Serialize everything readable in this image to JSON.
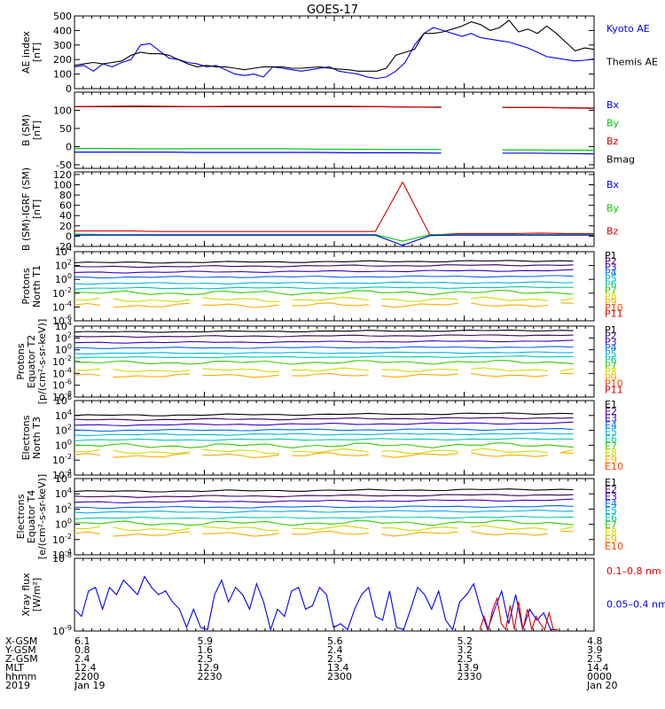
{
  "title": "GOES-17",
  "colors": {
    "frame": "#000000",
    "grid": "#dddddd",
    "blue": "#0000ff",
    "black": "#000000",
    "green": "#00cc00",
    "red": "#dd0000",
    "p1": "#000000",
    "p2": "#3a0066",
    "p3": "#3a00cc",
    "p4": "#0066ff",
    "p5": "#00b3e6",
    "p6": "#00ccaa",
    "p7": "#33cc00",
    "p8": "#ccdd00",
    "p9": "#ffaa00",
    "p10": "#ff4400",
    "p11": "#dd0000"
  },
  "x_axis": {
    "labels_left": [
      "X-GSM",
      "Y-GSM",
      "Z-GSM",
      "MLT",
      "hhmm",
      "2019"
    ],
    "ticks": [
      {
        "pos": 0.0,
        "lines": [
          "6.1",
          "0.8",
          "2.4",
          "12.4",
          "2200",
          "Jan 19"
        ]
      },
      {
        "pos": 0.25,
        "lines": [
          "5.9",
          "1.6",
          "2.5",
          "12.9",
          "2230",
          ""
        ]
      },
      {
        "pos": 0.5,
        "lines": [
          "5.6",
          "2.4",
          "2.5",
          "13.4",
          "2300",
          ""
        ]
      },
      {
        "pos": 0.75,
        "lines": [
          "5.2",
          "3.2",
          "2.5",
          "13.9",
          "2330",
          ""
        ]
      },
      {
        "pos": 1.0,
        "lines": [
          "4.8",
          "3.9",
          "2.5",
          "14.4",
          "0000",
          "Jan 20"
        ]
      }
    ]
  },
  "chart_data": [
    {
      "type": "line",
      "name": "ae",
      "ylabel": [
        "AE index",
        "[nT]"
      ],
      "ylim": [
        0,
        500
      ],
      "yticks": [
        "500",
        "400",
        "300",
        "200",
        "100",
        "0"
      ],
      "legend": [
        {
          "text": "Kyoto AE",
          "color": "#0000ff"
        },
        {
          "text": "Themis AE",
          "color": "#000000"
        }
      ],
      "series": [
        {
          "name": "Kyoto AE",
          "color": "#0000ff",
          "y": [
            150,
            160,
            120,
            170,
            150,
            180,
            200,
            300,
            310,
            260,
            210,
            200,
            180,
            170,
            150,
            160,
            130,
            100,
            90,
            100,
            80,
            150,
            140,
            130,
            120,
            130,
            140,
            150,
            120,
            110,
            100,
            80,
            70,
            80,
            120,
            180,
            300,
            380,
            420,
            400,
            380,
            360,
            380,
            350,
            340,
            330,
            320,
            300,
            280,
            250,
            220,
            210,
            200,
            190,
            195,
            205
          ]
        },
        {
          "name": "Themis AE",
          "color": "#000000",
          "y": [
            160,
            170,
            180,
            170,
            180,
            190,
            230,
            250,
            240,
            240,
            230,
            200,
            170,
            150,
            160,
            150,
            150,
            140,
            130,
            140,
            150,
            150,
            150,
            140,
            140,
            145,
            150,
            140,
            135,
            130,
            120,
            120,
            120,
            140,
            230,
            250,
            270,
            380,
            380,
            390,
            410,
            430,
            460,
            440,
            400,
            420,
            470,
            390,
            410,
            380,
            430,
            380,
            320,
            260,
            280,
            270
          ]
        }
      ]
    },
    {
      "type": "line",
      "name": "bsm",
      "ylabel": [
        "B (SM)",
        "[nT]"
      ],
      "ylim": [
        -60,
        150
      ],
      "yticks": [
        "100",
        "50",
        "0",
        "-50"
      ],
      "legend": [
        {
          "text": "Bx",
          "color": "#0000ff"
        },
        {
          "text": "By",
          "color": "#00cc00"
        },
        {
          "text": "Bz",
          "color": "#dd0000"
        },
        {
          "text": "Bmag",
          "color": "#000000"
        }
      ],
      "gap": [
        0.76,
        0.78
      ],
      "series": [
        {
          "name": "Bmag",
          "color": "#000000",
          "y": [
            110,
            110,
            110,
            110,
            110,
            110,
            110,
            110,
            110,
            110,
            110,
            109,
            109,
            109,
            108,
            108,
            107,
            106
          ]
        },
        {
          "name": "Bz",
          "color": "#dd0000",
          "y": [
            110,
            111,
            112,
            111,
            110,
            111,
            111,
            111,
            111,
            111,
            110,
            109,
            108,
            108,
            108,
            108,
            107,
            105
          ]
        },
        {
          "name": "By",
          "color": "#00cc00",
          "y": [
            -5,
            -5,
            -6,
            -6,
            -6,
            -6,
            -6,
            -6,
            -7,
            -7,
            -8,
            -8,
            -8,
            -8,
            -9,
            -9,
            -10,
            -10
          ]
        },
        {
          "name": "Bx",
          "color": "#0000ff",
          "y": [
            -15,
            -15,
            -15,
            -15,
            -16,
            -16,
            -16,
            -16,
            -16,
            -17,
            -17,
            -17,
            -18,
            -18,
            -18,
            -18,
            -19,
            -20
          ]
        }
      ]
    },
    {
      "type": "line",
      "name": "bdiff",
      "ylabel": [
        "B (SM)-IGRF (SM)",
        "[nT]"
      ],
      "ylim": [
        -20,
        125
      ],
      "yticks": [
        "120",
        "100",
        "80",
        "60",
        "40",
        "20",
        "0",
        "-20"
      ],
      "legend": [
        {
          "text": "Bx",
          "color": "#0000ff"
        },
        {
          "text": "By",
          "color": "#00cc00"
        },
        {
          "text": "Bz",
          "color": "#dd0000"
        }
      ],
      "series": [
        {
          "name": "Bz",
          "color": "#dd0000",
          "y": [
            10,
            10,
            10,
            9,
            9,
            9,
            9,
            9,
            9,
            9,
            9,
            9,
            105,
            2,
            5,
            5,
            5,
            6,
            5,
            5
          ]
        },
        {
          "name": "By",
          "color": "#00cc00",
          "y": [
            4,
            3,
            3,
            3,
            3,
            3,
            3,
            3,
            3,
            3,
            3,
            3,
            -10,
            3,
            3,
            3,
            3,
            3,
            3,
            3
          ]
        },
        {
          "name": "Bx",
          "color": "#0000ff",
          "y": [
            2,
            2,
            2,
            2,
            2,
            2,
            2,
            2,
            2,
            2,
            2,
            2,
            -18,
            1,
            2,
            2,
            2,
            2,
            2,
            2
          ]
        }
      ]
    },
    {
      "type": "line",
      "name": "protons_t1",
      "ylabel": [
        "Protons",
        "North T1"
      ],
      "ylim_log": [
        -6,
        4
      ],
      "yticks": [
        "10^4",
        "10^2",
        "10^0",
        "10^-2",
        "10^-4",
        "10^-6"
      ],
      "legend": [
        "P1",
        "P2",
        "P3",
        "P4",
        "P5",
        "P6",
        "P7",
        "P8",
        "P9",
        "P10",
        "P11"
      ],
      "levels": [
        2.4,
        1.8,
        1.0,
        0.3,
        -0.6,
        -1.3,
        -2.0,
        -3.0,
        -3.8,
        -5.0,
        -5.5
      ],
      "visible_levels": 9
    },
    {
      "type": "line",
      "name": "protons_t2",
      "ylabel": [
        "Protons",
        "Equator T2",
        "[p/(cm²-s-sr-keV)]"
      ],
      "ylim_log": [
        -8,
        4
      ],
      "yticks": [
        "10^4",
        "10^2",
        "10^0",
        "10^-2",
        "10^-4",
        "10^-6",
        "10^-8"
      ],
      "legend": [
        "P1",
        "P2",
        "P3",
        "P4",
        "P5",
        "P6",
        "P7",
        "P8",
        "P9",
        "P10",
        "P11"
      ],
      "levels": [
        3.0,
        2.2,
        1.2,
        0.3,
        -0.6,
        -1.3,
        -2.2,
        -3.5,
        -4.4,
        -6.4,
        -7.5
      ],
      "visible_levels": 9
    },
    {
      "type": "line",
      "name": "electrons_t3",
      "ylabel": [
        "Electrons",
        "North T3"
      ],
      "ylim_log": [
        -4,
        6
      ],
      "yticks": [
        "10^6",
        "10^4",
        "10^2",
        "10^0",
        "10^-2",
        "10^-4"
      ],
      "legend": [
        "E1",
        "E2",
        "E3",
        "E4",
        "E5",
        "E6",
        "E7",
        "E8",
        "E9",
        "E10"
      ],
      "levels": [
        4.0,
        3.4,
        2.7,
        2.0,
        1.4,
        0.7,
        -0.1,
        -0.9,
        -1.4,
        -2.5
      ],
      "visible_levels": 9
    },
    {
      "type": "line",
      "name": "electrons_t4",
      "ylabel": [
        "Electrons",
        "Equator T4",
        "[e/(cm²-s-sr-keV)]"
      ],
      "ylim_log": [
        -4,
        6
      ],
      "yticks": [
        "10^6",
        "10^4",
        "10^2",
        "10^0",
        "10^-2",
        "10^-4"
      ],
      "legend": [
        "E1",
        "E2",
        "E3",
        "E4",
        "E5",
        "E6",
        "E7",
        "E8",
        "E9",
        "E10"
      ],
      "levels": [
        4.3,
        3.6,
        2.9,
        2.2,
        1.6,
        0.8,
        0.1,
        -0.6,
        -1.3,
        -2.3
      ],
      "visible_levels": 9
    },
    {
      "type": "line",
      "name": "xray",
      "ylabel": [
        "Xray flux",
        "[W/m²]"
      ],
      "ylim_log": [
        -9,
        -8
      ],
      "yticks": [
        "10^-8",
        "10^-9"
      ],
      "legend": [
        {
          "text": "0.1–0.8 nm",
          "color": "#dd0000"
        },
        {
          "text": "0.05–0.4 nm",
          "color": "#0000ff"
        }
      ],
      "series": [
        {
          "name": "0.05–0.4 nm",
          "color": "#0000ff",
          "y": [
            0.3,
            0.2,
            0.55,
            0.6,
            0.3,
            0.6,
            0.5,
            0.7,
            0.6,
            0.5,
            0.75,
            0.6,
            0.5,
            0.55,
            0.4,
            0.3,
            0.05,
            0.3,
            0.05,
            0.02,
            0.5,
            0.7,
            0.4,
            0.6,
            0.5,
            0.3,
            0.65,
            0.4,
            0.02,
            0.3,
            0.2,
            0.55,
            0.6,
            0.3,
            0.35,
            0.6,
            0.5,
            0.05,
            0.1,
            0.02,
            0.3,
            0.5,
            0.6,
            0.2,
            0.15,
            0.55,
            0.05,
            0.02,
            0.3,
            0.6,
            0.5,
            0.3,
            0.55,
            0.15,
            0.02,
            0.4,
            0.5,
            0.65,
            0.3,
            0.02,
            0.3,
            0.55,
            0.1,
            0.5,
            0.02,
            0.3,
            0.15,
            0.25,
            0.02,
            0.02
          ]
        },
        {
          "name": "0.1–0.8 nm",
          "color": "#dd0000",
          "start": 0.78,
          "y": [
            0.02,
            0.2,
            0.02,
            0.3,
            0.45,
            0.1,
            0.02,
            0.35,
            0.02,
            0.4,
            0.02,
            0.3,
            0.02,
            0.2,
            0.1,
            0.02,
            0.25,
            0.02,
            0.02
          ]
        }
      ]
    }
  ]
}
